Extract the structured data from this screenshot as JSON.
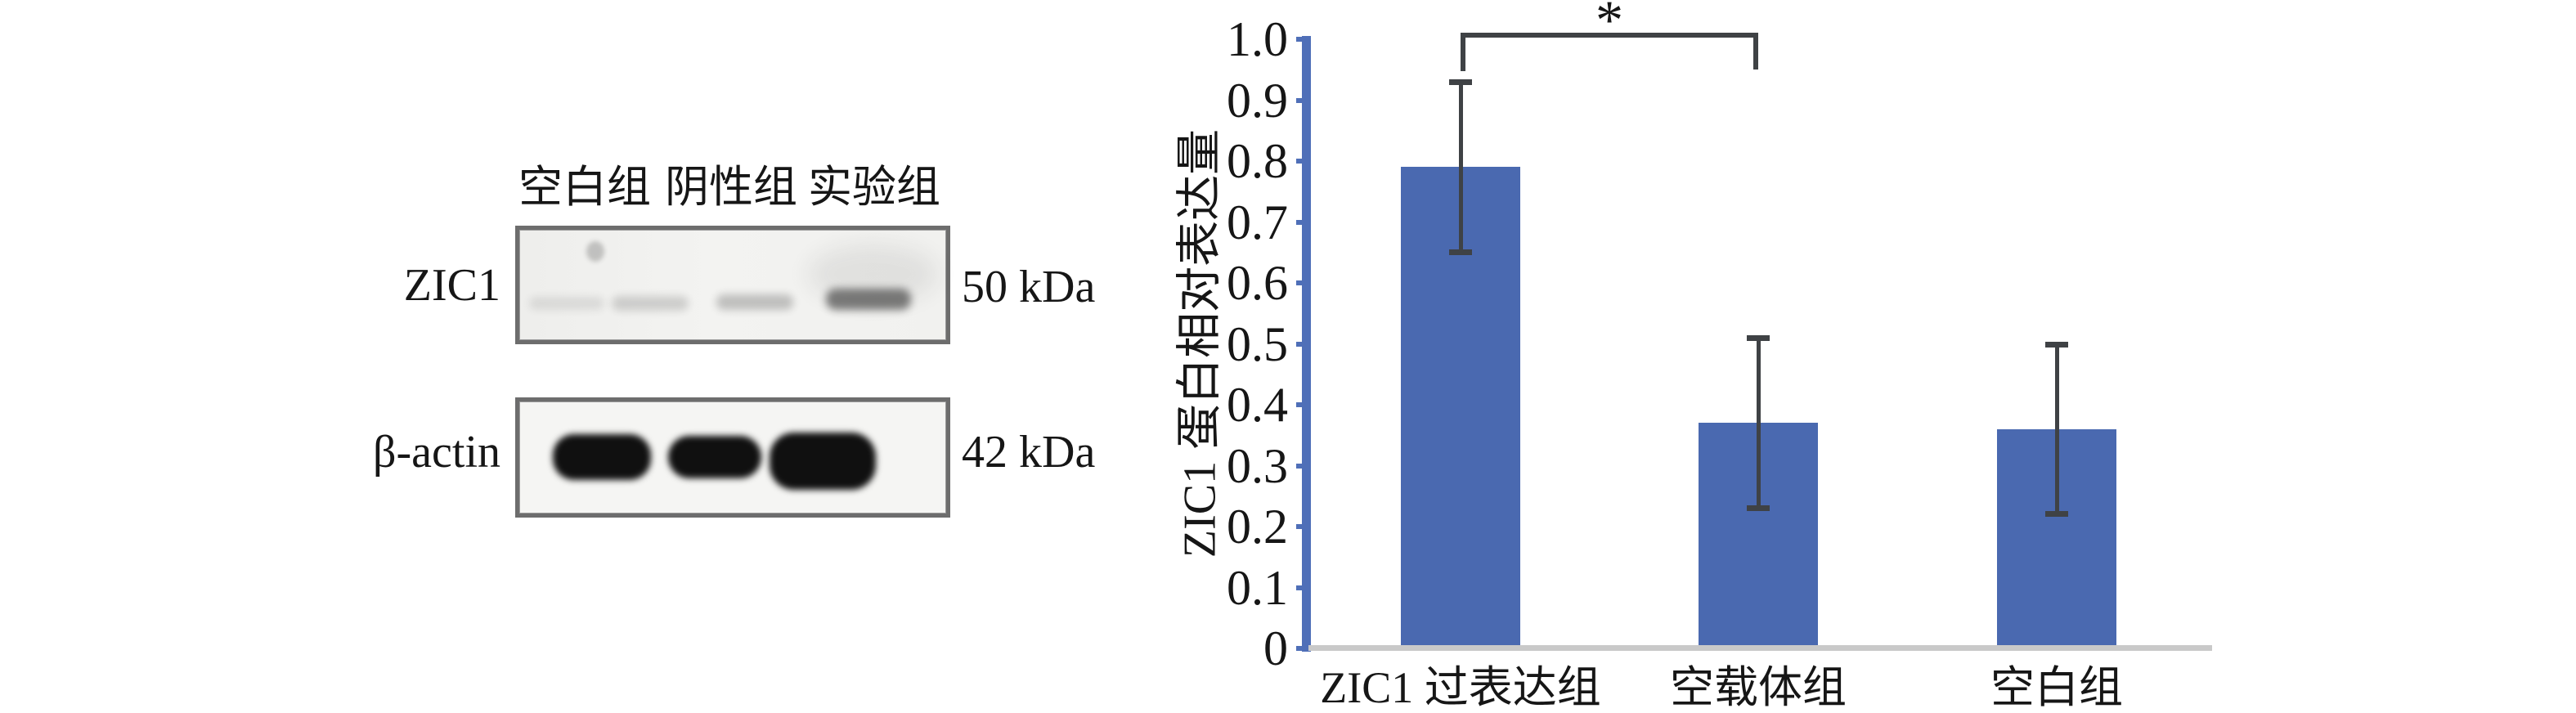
{
  "blot": {
    "lane_labels": [
      "空白组",
      "阴性组",
      "实验组"
    ],
    "rows": [
      {
        "protein": "ZIC1",
        "size_label": "50 kDa",
        "band_intensities": [
          "very-faint",
          "faint",
          "strong"
        ]
      },
      {
        "protein": "β-actin",
        "size_label": "42 kDa",
        "band_intensities": [
          "strong",
          "strong",
          "strong"
        ]
      }
    ]
  },
  "chart_data": {
    "type": "bar",
    "title": "",
    "xlabel": "",
    "ylabel": "ZIC1 蛋白相对表达量",
    "categories": [
      "ZIC1 过表达组",
      "空载体组",
      "空白组"
    ],
    "values": [
      0.79,
      0.37,
      0.36
    ],
    "errors": [
      0.14,
      0.14,
      0.14
    ],
    "ylim": [
      0,
      1.0
    ],
    "yticks": [
      "0",
      "0.1",
      "0.2",
      "0.3",
      "0.4",
      "0.5",
      "0.6",
      "0.7",
      "0.8",
      "0.9",
      "1.0"
    ],
    "grid": false,
    "legend": false,
    "bar_color": "#4a69b0",
    "axis_color": "#4f6fb8",
    "baseline_color": "#c9c9c9",
    "error_color": "#3f4245",
    "significance": {
      "symbol": "*",
      "between": [
        0,
        1
      ]
    }
  }
}
